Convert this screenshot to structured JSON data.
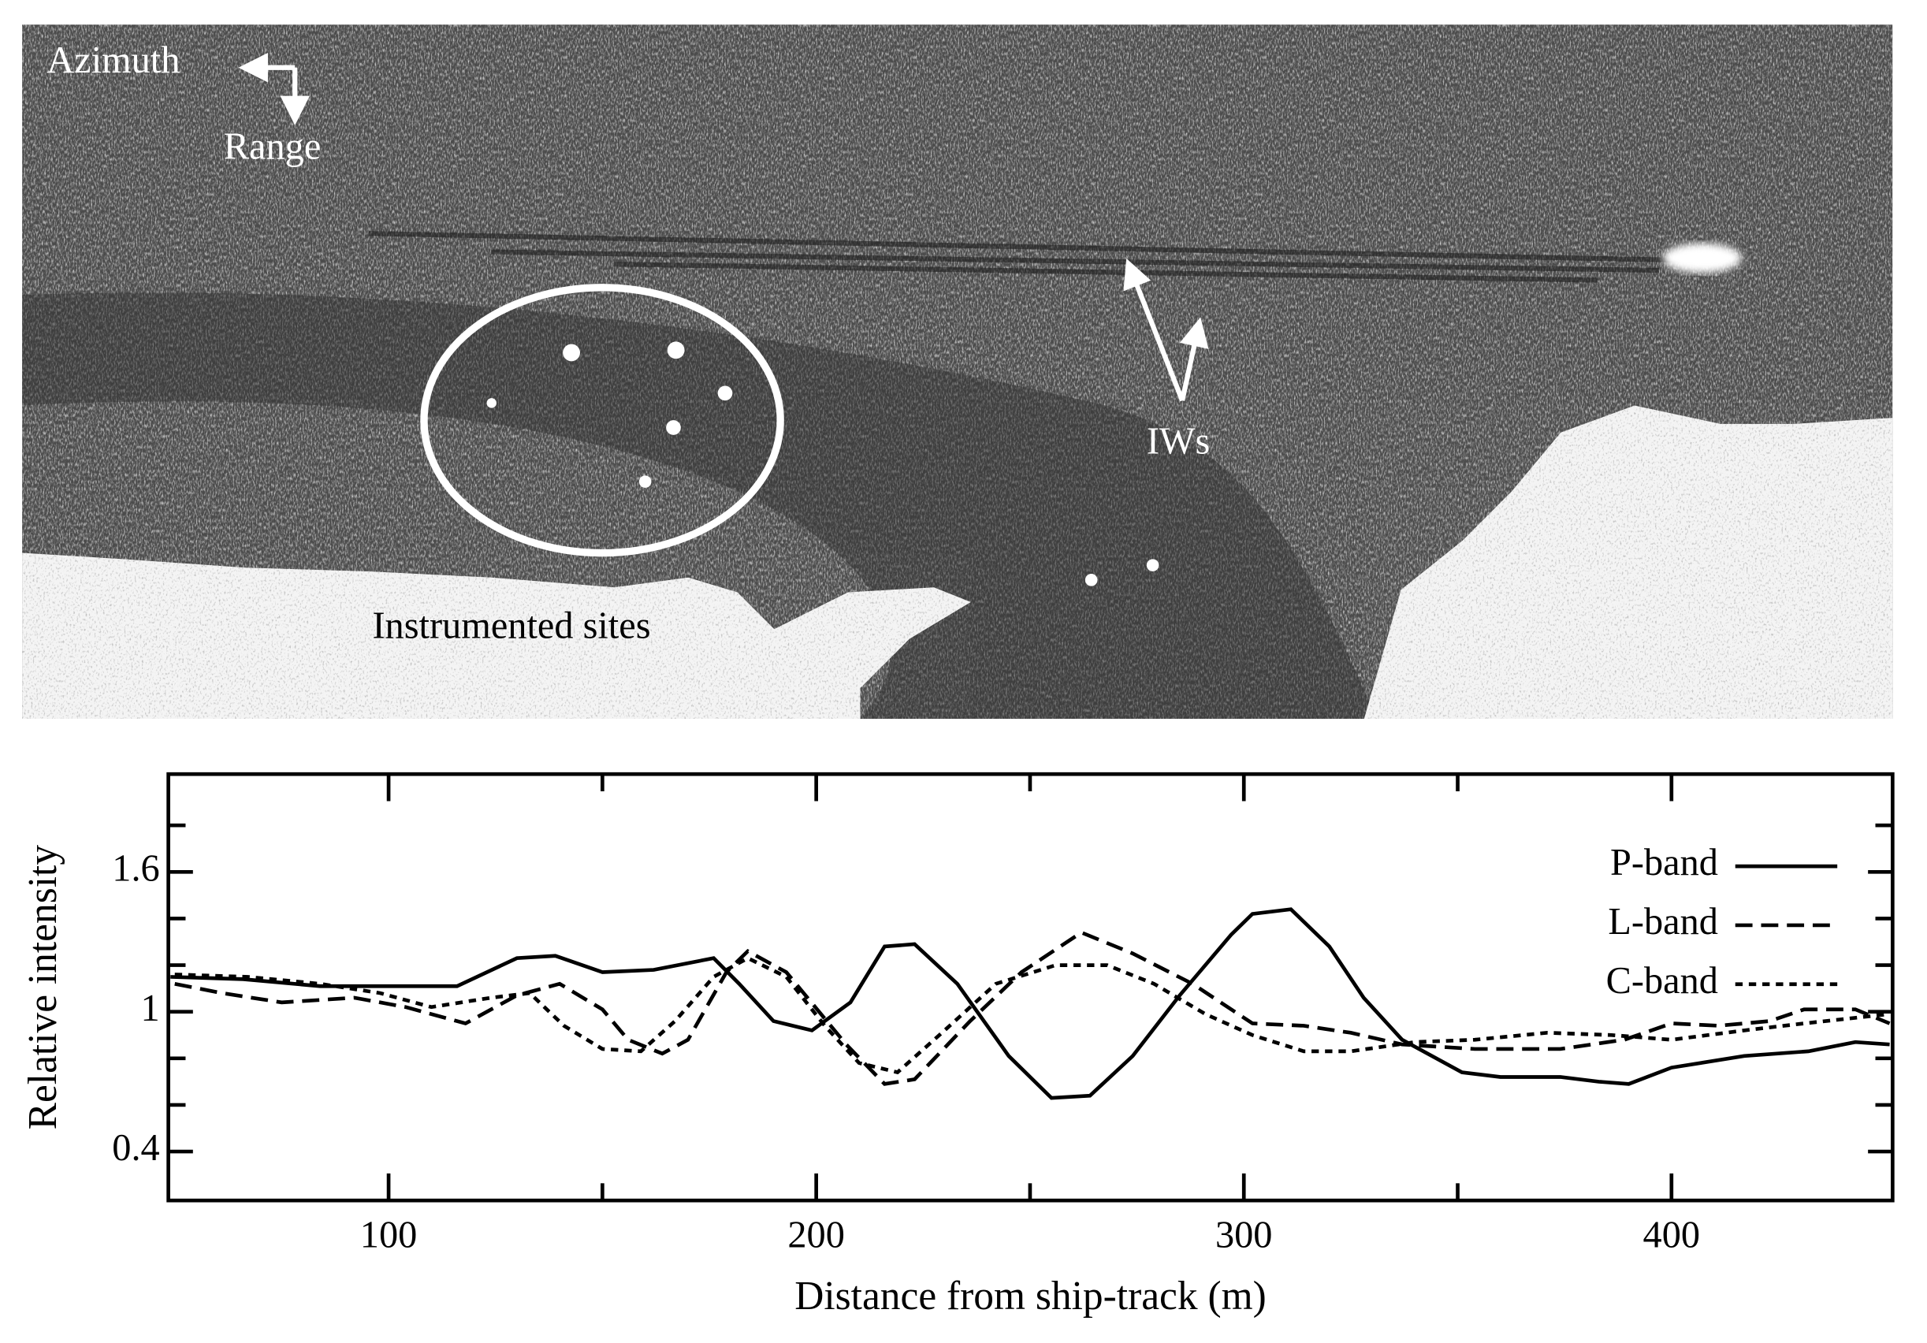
{
  "sar_image": {
    "azimuth": "Azimuth",
    "range": "Range",
    "iws": "IWs",
    "sites": "Instrumented sites"
  },
  "chart_data": {
    "type": "line",
    "xlabel": "Distance from ship-track (m)",
    "ylabel": "Relative intensity",
    "xlim": [
      48.5,
      451.7
    ],
    "ylim": [
      0.19,
      2.02
    ],
    "xticks": [
      100,
      200,
      300,
      400
    ],
    "xminorticks": [
      150,
      250,
      350
    ],
    "yticks": [
      0.4,
      1.0,
      1.6
    ],
    "yminorticks": [
      0.6,
      0.8,
      1.2,
      1.4,
      1.8
    ],
    "legend": "upper right",
    "series": [
      {
        "name": "P-band",
        "color": "#000000",
        "style": "solid",
        "x": [
          49,
          66,
          84,
          100,
          116,
          130,
          139,
          150,
          162,
          176,
          182,
          190,
          199,
          208,
          216,
          223,
          233,
          245,
          255,
          264,
          274,
          285,
          297,
          302,
          311,
          320,
          328,
          337,
          351,
          360,
          374,
          383,
          390,
          400,
          417,
          432,
          443,
          451
        ],
        "values": [
          1.15,
          1.14,
          1.11,
          1.11,
          1.11,
          1.23,
          1.24,
          1.17,
          1.18,
          1.23,
          1.12,
          0.96,
          0.92,
          1.04,
          1.28,
          1.29,
          1.12,
          0.81,
          0.63,
          0.64,
          0.81,
          1.07,
          1.33,
          1.42,
          1.44,
          1.28,
          1.06,
          0.88,
          0.74,
          0.72,
          0.72,
          0.7,
          0.69,
          0.76,
          0.81,
          0.83,
          0.87,
          0.86
        ]
      },
      {
        "name": "L-band",
        "color": "#000000",
        "style": "dashed",
        "x": [
          50,
          61,
          75,
          92,
          104,
          118,
          130,
          140,
          150,
          156,
          164,
          170,
          179,
          184,
          193,
          207,
          216,
          223,
          236,
          248,
          262,
          274,
          288,
          302,
          314,
          325,
          337,
          354,
          374,
          389,
          400,
          411,
          423,
          431,
          443,
          451
        ],
        "values": [
          1.12,
          1.08,
          1.04,
          1.06,
          1.02,
          0.95,
          1.07,
          1.12,
          1.01,
          0.88,
          0.82,
          0.88,
          1.17,
          1.26,
          1.17,
          0.86,
          0.69,
          0.71,
          0.96,
          1.17,
          1.34,
          1.25,
          1.12,
          0.95,
          0.94,
          0.91,
          0.86,
          0.84,
          0.84,
          0.88,
          0.95,
          0.94,
          0.96,
          1.01,
          1.01,
          0.95
        ]
      },
      {
        "name": "C-band",
        "color": "#000000",
        "style": "dotted",
        "x": [
          50,
          67,
          84,
          98,
          110,
          124,
          133,
          141,
          150,
          159,
          167,
          176,
          184,
          193,
          202,
          210,
          219,
          230,
          242,
          256,
          268,
          279,
          291,
          302,
          314,
          325,
          340,
          354,
          371,
          386,
          400,
          417,
          431,
          451
        ],
        "values": [
          1.16,
          1.15,
          1.12,
          1.08,
          1.02,
          1.06,
          1.08,
          0.94,
          0.84,
          0.83,
          0.96,
          1.15,
          1.23,
          1.15,
          0.94,
          0.78,
          0.74,
          0.92,
          1.12,
          1.2,
          1.2,
          1.12,
          0.99,
          0.9,
          0.83,
          0.83,
          0.87,
          0.88,
          0.91,
          0.9,
          0.88,
          0.92,
          0.95,
          0.99
        ]
      }
    ]
  }
}
